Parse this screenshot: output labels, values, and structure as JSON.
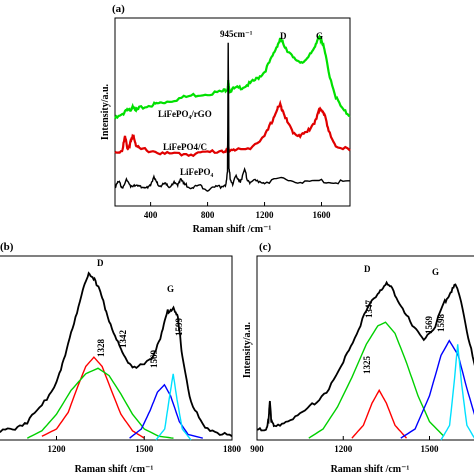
{
  "chart_data": [
    {
      "panel": "(a)",
      "type": "line",
      "xlabel": "Raman shift /cm⁻¹",
      "ylabel": "Intensity/a.u.",
      "xlim": [
        150,
        1800
      ],
      "xticks": [
        "400",
        "800",
        "1200",
        "1600"
      ],
      "xtick_values": [
        400,
        800,
        1200,
        1600
      ],
      "grid": false,
      "series": [
        {
          "name": "LiFePO₄/rGO",
          "color": "#00e000",
          "x": [
            150,
            200,
            230,
            260,
            280,
            300,
            320,
            400,
            450,
            500,
            600,
            700,
            800,
            900,
            940,
            945,
            950,
            960,
            1000,
            1050,
            1100,
            1150,
            1200,
            1250,
            1290,
            1310,
            1330,
            1360,
            1400,
            1450,
            1500,
            1540,
            1570,
            1590,
            1600,
            1620,
            1650,
            1700,
            1750,
            1800
          ],
          "y": [
            0.52,
            0.54,
            0.58,
            0.56,
            0.6,
            0.57,
            0.58,
            0.6,
            0.61,
            0.62,
            0.64,
            0.66,
            0.67,
            0.68,
            0.7,
            0.74,
            0.7,
            0.69,
            0.7,
            0.71,
            0.73,
            0.76,
            0.8,
            0.88,
            0.96,
            0.99,
            0.97,
            0.93,
            0.88,
            0.86,
            0.87,
            0.93,
            0.99,
            1.0,
            0.99,
            0.93,
            0.8,
            0.65,
            0.57,
            0.54
          ]
        },
        {
          "name": "LiFePO4/C",
          "color": "#e00000",
          "x": [
            150,
            200,
            220,
            240,
            260,
            280,
            300,
            320,
            400,
            500,
            600,
            700,
            800,
            900,
            940,
            945,
            950,
            1000,
            1100,
            1200,
            1250,
            1290,
            1310,
            1330,
            1360,
            1400,
            1450,
            1500,
            1550,
            1580,
            1600,
            1620,
            1650,
            1700,
            1800
          ],
          "y": [
            0.32,
            0.33,
            0.41,
            0.34,
            0.38,
            0.42,
            0.36,
            0.34,
            0.33,
            0.31,
            0.31,
            0.31,
            0.32,
            0.33,
            0.33,
            0.36,
            0.33,
            0.33,
            0.35,
            0.41,
            0.5,
            0.58,
            0.6,
            0.57,
            0.5,
            0.44,
            0.42,
            0.44,
            0.5,
            0.56,
            0.58,
            0.55,
            0.44,
            0.36,
            0.33
          ]
        },
        {
          "name": "LiFePO₄",
          "color": "#000000",
          "x": [
            150,
            180,
            200,
            230,
            260,
            290,
            320,
            350,
            380,
            400,
            420,
            440,
            460,
            500,
            530,
            560,
            590,
            610,
            630,
            660,
            700,
            750,
            800,
            850,
            900,
            930,
            940,
            945,
            950,
            960,
            980,
            1000,
            1030,
            1060,
            1080,
            1100,
            1150,
            1200,
            1300,
            1400,
            1500,
            1600,
            1700,
            1800
          ],
          "y": [
            0.12,
            0.14,
            0.11,
            0.15,
            0.12,
            0.13,
            0.11,
            0.12,
            0.1,
            0.13,
            0.17,
            0.14,
            0.12,
            0.13,
            0.11,
            0.14,
            0.12,
            0.17,
            0.13,
            0.12,
            0.11,
            0.12,
            0.1,
            0.11,
            0.12,
            0.13,
            0.2,
            0.98,
            0.22,
            0.16,
            0.13,
            0.18,
            0.15,
            0.21,
            0.16,
            0.14,
            0.15,
            0.14,
            0.16,
            0.15,
            0.14,
            0.15,
            0.14,
            0.15
          ]
        }
      ],
      "annotations": [
        "945cm⁻¹",
        "D",
        "G"
      ]
    },
    {
      "panel": "(b)",
      "type": "line",
      "xlabel": "Raman shift /cm⁻¹",
      "ylabel": "",
      "xlim": [
        1000,
        1800
      ],
      "xticks": [
        "1200",
        "1500",
        "1800"
      ],
      "xtick_values": [
        1200,
        1500,
        1800
      ],
      "grid": false,
      "series": [
        {
          "color": "#000000",
          "x": [
            1000,
            1050,
            1100,
            1150,
            1200,
            1230,
            1260,
            1290,
            1310,
            1330,
            1350,
            1370,
            1400,
            1430,
            1460,
            1500,
            1530,
            1560,
            1580,
            1600,
            1615,
            1630,
            1660,
            1700,
            1750,
            1800
          ],
          "y": [
            0.04,
            0.06,
            0.1,
            0.18,
            0.32,
            0.46,
            0.64,
            0.82,
            0.9,
            0.88,
            0.8,
            0.7,
            0.56,
            0.46,
            0.4,
            0.4,
            0.46,
            0.58,
            0.7,
            0.72,
            0.66,
            0.46,
            0.2,
            0.08,
            0.04,
            0.02
          ]
        },
        {
          "color": "#ff0000",
          "x": [
            1150,
            1200,
            1240,
            1270,
            1300,
            1328,
            1356,
            1390,
            1420,
            1460,
            1500
          ],
          "y": [
            0.02,
            0.06,
            0.15,
            0.28,
            0.4,
            0.45,
            0.4,
            0.26,
            0.14,
            0.05,
            0.01
          ]
        },
        {
          "color": "#00d000",
          "x": [
            1100,
            1150,
            1200,
            1250,
            1300,
            1342,
            1380,
            1420,
            1460,
            1500,
            1550,
            1600
          ],
          "y": [
            0.01,
            0.05,
            0.14,
            0.27,
            0.36,
            0.39,
            0.35,
            0.25,
            0.14,
            0.06,
            0.02,
            0.01
          ]
        },
        {
          "color": "#0000ff",
          "x": [
            1450,
            1490,
            1520,
            1545,
            1569,
            1590,
            1620,
            1650,
            1700
          ],
          "y": [
            0.01,
            0.06,
            0.16,
            0.26,
            0.3,
            0.24,
            0.1,
            0.03,
            0.01
          ]
        },
        {
          "color": "#00e0ff",
          "x": [
            1540,
            1570,
            1585,
            1599,
            1612,
            1630,
            1660
          ],
          "y": [
            0.0,
            0.06,
            0.22,
            0.36,
            0.22,
            0.06,
            0.0
          ]
        }
      ],
      "annotations": [
        "D",
        "G",
        "1328",
        "1342",
        "1569",
        "1599"
      ]
    },
    {
      "panel": "(c)",
      "type": "line",
      "xlabel": "Raman shift /cm⁻¹",
      "ylabel": "Intensity/a.u.",
      "xlim": [
        900,
        1700
      ],
      "xticks": [
        "900",
        "1200",
        "1500"
      ],
      "xtick_values": [
        900,
        1200,
        1500
      ],
      "grid": false,
      "series": [
        {
          "color": "#000000",
          "x": [
            900,
            930,
            940,
            945,
            950,
            960,
            1000,
            1050,
            1100,
            1150,
            1200,
            1240,
            1280,
            1320,
            1347,
            1370,
            1400,
            1440,
            1480,
            1520,
            1550,
            1570,
            1590,
            1610,
            1640,
            1670,
            1700
          ],
          "y": [
            0.05,
            0.06,
            0.1,
            0.22,
            0.1,
            0.07,
            0.1,
            0.14,
            0.2,
            0.28,
            0.42,
            0.56,
            0.7,
            0.8,
            0.85,
            0.82,
            0.74,
            0.62,
            0.55,
            0.62,
            0.74,
            0.8,
            0.84,
            0.76,
            0.52,
            0.32,
            0.2
          ]
        },
        {
          "color": "#ff0000",
          "x": [
            1230,
            1270,
            1300,
            1325,
            1350,
            1380,
            1420
          ],
          "y": [
            0.01,
            0.08,
            0.2,
            0.27,
            0.2,
            0.08,
            0.01
          ]
        },
        {
          "color": "#00d000",
          "x": [
            1080,
            1130,
            1180,
            1230,
            1280,
            1320,
            1347,
            1380,
            1420,
            1460,
            1500,
            1550
          ],
          "y": [
            0.01,
            0.06,
            0.18,
            0.34,
            0.52,
            0.62,
            0.64,
            0.58,
            0.42,
            0.24,
            0.1,
            0.02
          ]
        },
        {
          "color": "#0000ff",
          "x": [
            1400,
            1450,
            1500,
            1540,
            1569,
            1600,
            1630,
            1660,
            1700
          ],
          "y": [
            0.01,
            0.06,
            0.24,
            0.46,
            0.54,
            0.46,
            0.28,
            0.12,
            0.05
          ]
        },
        {
          "color": "#00e0ff",
          "x": [
            1540,
            1570,
            1585,
            1598,
            1612,
            1630,
            1660
          ],
          "y": [
            0.0,
            0.08,
            0.3,
            0.52,
            0.3,
            0.08,
            0.0
          ]
        }
      ],
      "annotations": [
        "D",
        "G",
        "1347",
        "1325",
        "1569",
        "1598"
      ]
    }
  ],
  "labels": {
    "a_peak": "945cm⁻¹",
    "a_d": "D",
    "a_g": "G",
    "a_rgo": "LiFePO₄/rGO",
    "a_c": "LiFePO4/C",
    "a_lfp": "LiFePO₄",
    "b_d": "D",
    "b_g": "G",
    "b_1328": "1328",
    "b_1342": "1342",
    "b_1569": "1569",
    "b_1599": "1599",
    "c_d": "D",
    "c_g": "G",
    "c_1347": "1347",
    "c_1325": "1325",
    "c_1569": "1569",
    "c_1598": "1598"
  }
}
